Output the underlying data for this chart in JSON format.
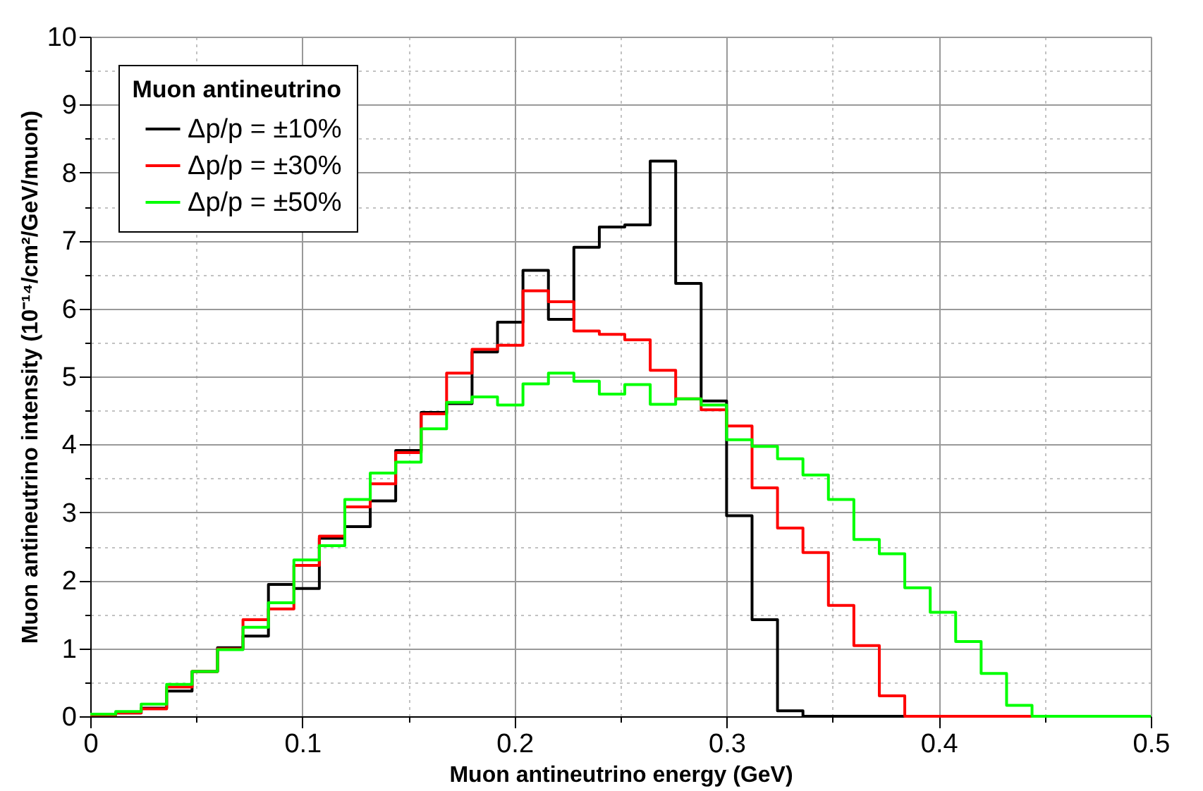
{
  "chart_data": {
    "type": "histogram",
    "xlabel": "Muon antineutrino energy (GeV)",
    "ylabel": "Muon antineutrino intensity (10⁻¹⁴/cm²/GeV/muon)",
    "legend_title": "Muon antineutrino",
    "bins": [
      0,
      0.012,
      0.024,
      0.036,
      0.048,
      0.06,
      0.072,
      0.084,
      0.096,
      0.108,
      0.12,
      0.132,
      0.144,
      0.156,
      0.168,
      0.18,
      0.192,
      0.204,
      0.216,
      0.228,
      0.24,
      0.252,
      0.264,
      0.276,
      0.288,
      0.3,
      0.312,
      0.324,
      0.336,
      0.348,
      0.36,
      0.372,
      0.384,
      0.396,
      0.408,
      0.42,
      0.432,
      0.444,
      0.456,
      0.468,
      0.48,
      0.492,
      0.5
    ],
    "series": [
      {
        "name": "Δp/p = ±10%",
        "color": "#000000",
        "values": [
          0.02,
          0.05,
          0.12,
          0.37,
          0.66,
          1.01,
          1.18,
          1.94,
          1.88,
          2.62,
          2.79,
          3.17,
          3.91,
          4.47,
          4.6,
          5.36,
          5.8,
          6.56,
          5.84,
          6.9,
          7.2,
          7.23,
          8.17,
          6.37,
          4.64,
          2.95,
          1.42,
          0.08,
          0,
          0,
          0,
          0,
          0,
          0,
          0,
          0,
          0,
          0,
          0,
          0,
          0,
          0
        ]
      },
      {
        "name": "Δp/p = ±30%",
        "color": "#ff0000",
        "values": [
          0.02,
          0.05,
          0.11,
          0.43,
          0.66,
          0.99,
          1.42,
          1.58,
          2.22,
          2.65,
          3.08,
          3.42,
          3.88,
          4.45,
          5.05,
          5.4,
          5.46,
          6.26,
          6.1,
          5.67,
          5.62,
          5.54,
          5.09,
          4.67,
          4.51,
          4.27,
          3.36,
          2.77,
          2.41,
          1.63,
          1.04,
          0.3,
          0,
          0,
          0,
          0,
          0,
          0,
          0,
          0,
          0,
          0
        ]
      },
      {
        "name": "Δp/p = ±50%",
        "color": "#00ff00",
        "values": [
          0.03,
          0.07,
          0.18,
          0.47,
          0.66,
          0.98,
          1.31,
          1.67,
          2.3,
          2.51,
          3.19,
          3.58,
          3.74,
          4.23,
          4.62,
          4.7,
          4.58,
          4.89,
          5.05,
          4.93,
          4.74,
          4.88,
          4.59,
          4.67,
          4.58,
          4.07,
          3.97,
          3.79,
          3.55,
          3.19,
          2.6,
          2.39,
          1.89,
          1.53,
          1.1,
          0.63,
          0.16,
          0,
          0,
          0,
          0,
          0
        ]
      }
    ],
    "xlim": [
      0,
      0.5
    ],
    "xticks": [
      0,
      {
        "value": 0.05,
        "label": null
      },
      0.1,
      {
        "value": 0.15,
        "label": null
      },
      0.2,
      {
        "value": 0.25,
        "label": null
      },
      0.3,
      {
        "value": 0.35,
        "label": null
      },
      0.4,
      {
        "value": 0.45,
        "label": null
      },
      0.5
    ],
    "ylim": [
      0,
      10
    ],
    "yticks": [
      0,
      {
        "value": 0.5,
        "label": null
      },
      1,
      {
        "value": 1.5,
        "label": null
      },
      2,
      {
        "value": 2.5,
        "label": null
      },
      3,
      {
        "value": 3.5,
        "label": null
      },
      4,
      {
        "value": 4.5,
        "label": null
      },
      5,
      {
        "value": 5.5,
        "label": null
      },
      6,
      {
        "value": 6.5,
        "label": null
      },
      7,
      {
        "value": 7.5,
        "label": null
      },
      8,
      {
        "value": 8.5,
        "label": null
      },
      9,
      {
        "value": 9.5,
        "label": null
      },
      10
    ],
    "grid": true,
    "legend": "top left",
    "line_style": "solid",
    "marker": "none"
  }
}
